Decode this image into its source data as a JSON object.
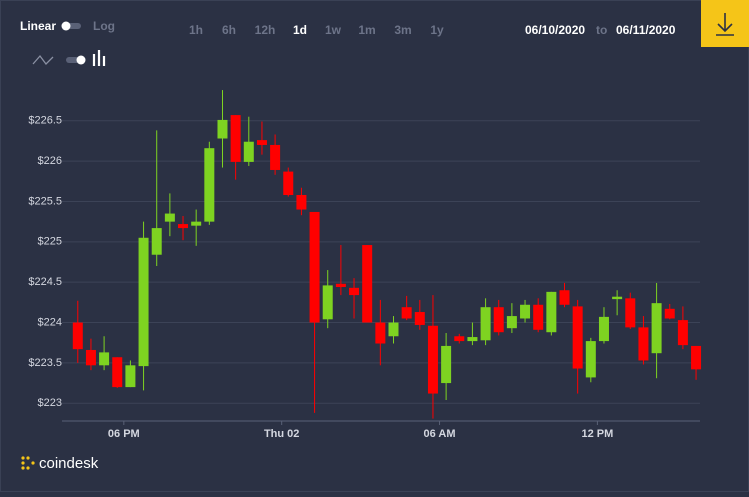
{
  "controls": {
    "scale_linear": "Linear",
    "scale_log": "Log",
    "ranges": [
      "1h",
      "6h",
      "12h",
      "1d",
      "1w",
      "1m",
      "3m",
      "1y"
    ],
    "active_range": 3,
    "date_from": "06/10/2020",
    "date_sep": "to",
    "date_to": "06/11/2020",
    "brand": "coindesk"
  },
  "chart_data": {
    "type": "candlestick",
    "x": [
      16.25,
      16.75,
      17.25,
      17.75,
      18.25,
      18.75,
      19.25,
      19.75,
      20.25,
      20.75,
      21.25,
      21.75,
      22.25,
      22.75,
      23.25,
      23.75,
      24.25,
      24.75,
      25.25,
      25.75,
      26.25,
      26.75,
      27.25,
      27.75,
      28.25,
      28.75,
      29.25,
      29.75,
      30.25,
      30.75,
      31.25,
      31.75,
      32.25,
      32.75,
      33.25,
      33.75,
      34.25,
      34.75,
      35.25,
      35.75,
      36.25,
      36.75,
      37.25,
      37.75,
      38.25,
      38.75,
      39.25,
      39.75
    ],
    "open": [
      224.0,
      223.66,
      223.47,
      223.57,
      223.2,
      223.46,
      224.84,
      225.25,
      225.22,
      225.2,
      225.25,
      226.28,
      226.57,
      225.99,
      226.26,
      226.2,
      225.87,
      225.58,
      225.37,
      224.04,
      224.48,
      224.43,
      224.96,
      224.0,
      223.83,
      224.19,
      224.13,
      223.96,
      223.25,
      223.83,
      223.77,
      223.78,
      224.19,
      223.93,
      224.05,
      224.22,
      223.88,
      224.4,
      224.2,
      223.32,
      223.77,
      224.29,
      224.3,
      223.94,
      223.62,
      224.17,
      224.03,
      223.71
    ],
    "high": [
      224.27,
      223.8,
      223.83,
      223.57,
      223.53,
      225.25,
      226.38,
      225.6,
      225.32,
      225.4,
      226.24,
      226.88,
      226.57,
      226.55,
      226.49,
      226.33,
      225.92,
      225.67,
      225.37,
      224.65,
      224.96,
      224.55,
      224.96,
      224.28,
      224.08,
      224.33,
      224.28,
      224.34,
      223.87,
      223.86,
      224.0,
      224.3,
      224.28,
      224.24,
      224.28,
      224.3,
      224.38,
      224.49,
      224.28,
      223.81,
      224.19,
      224.4,
      224.37,
      224.08,
      224.49,
      224.23,
      224.2,
      223.71
    ],
    "low": [
      223.5,
      223.41,
      223.41,
      223.19,
      223.2,
      223.16,
      224.7,
      225.07,
      225.02,
      224.95,
      225.21,
      225.92,
      225.77,
      225.94,
      226.08,
      225.83,
      225.56,
      225.33,
      222.88,
      223.93,
      224.34,
      224.05,
      224.0,
      223.47,
      223.74,
      224.03,
      223.91,
      222.81,
      223.04,
      223.74,
      223.72,
      223.72,
      223.84,
      223.87,
      224.0,
      223.88,
      223.84,
      224.19,
      223.12,
      223.26,
      223.74,
      224.09,
      223.92,
      223.48,
      223.31,
      224.04,
      223.67,
      223.29
    ],
    "close": [
      223.67,
      223.47,
      223.63,
      223.2,
      223.47,
      225.05,
      225.17,
      225.35,
      225.17,
      225.25,
      226.16,
      226.51,
      225.99,
      226.24,
      226.2,
      225.89,
      225.58,
      225.4,
      224.0,
      224.46,
      224.44,
      224.34,
      224.0,
      223.74,
      224.0,
      224.05,
      223.97,
      223.12,
      223.71,
      223.77,
      223.82,
      224.19,
      223.88,
      224.08,
      224.22,
      223.91,
      224.38,
      224.22,
      223.43,
      223.77,
      224.07,
      224.32,
      223.94,
      223.53,
      224.24,
      224.05,
      223.72,
      223.42
    ],
    "up_color": "#7ed321",
    "down_color": "#ff0000",
    "xlim": [
      15.65,
      39.9
    ],
    "xticks": [
      {
        "value": 18,
        "label": "06 PM"
      },
      {
        "value": 24,
        "label": "Thu 02"
      },
      {
        "value": 30,
        "label": "06 AM"
      },
      {
        "value": 36,
        "label": "12 PM"
      }
    ],
    "ylim": [
      222.78,
      226.98
    ],
    "yticks": [
      {
        "value": 223,
        "label": "$223"
      },
      {
        "value": 223.5,
        "label": "$223.5"
      },
      {
        "value": 224,
        "label": "$224"
      },
      {
        "value": 224.5,
        "label": "$224.5"
      },
      {
        "value": 225,
        "label": "$225"
      },
      {
        "value": 225.5,
        "label": "$225.5"
      },
      {
        "value": 226,
        "label": "$226"
      },
      {
        "value": 226.5,
        "label": "$226.5"
      }
    ],
    "grid": true
  }
}
